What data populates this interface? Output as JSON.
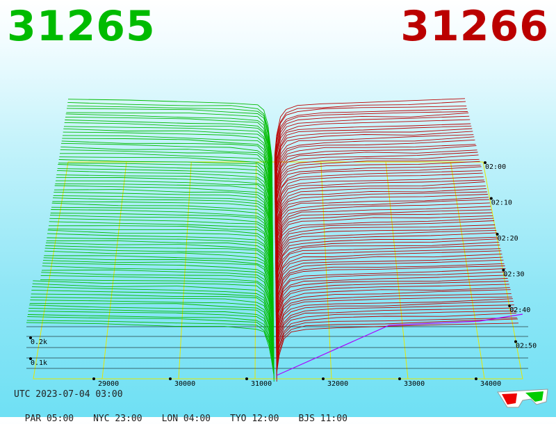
{
  "header": {
    "bid_price": "31265",
    "ask_price": "31266"
  },
  "colors": {
    "bid": "#00bb00",
    "ask": "#bb0000",
    "grid": "#e6e600",
    "edge": "#aa00ff",
    "base": "#000000"
  },
  "chart_data": {
    "type": "3d-depth",
    "price_axis": {
      "ticks": [
        "29000",
        "30000",
        "31000",
        "32000",
        "33000",
        "34000"
      ],
      "range": [
        28100,
        34500
      ]
    },
    "time_axis": {
      "ticks": [
        "02:00",
        "02:10",
        "02:20",
        "02:30",
        "02:40",
        "02:50"
      ]
    },
    "volume_axis": {
      "ticks": [
        "0.1k",
        "0.2k"
      ]
    },
    "bid_price": 31265,
    "ask_price": 31266
  },
  "footer": {
    "utc": "UTC 2023-07-04 03:00",
    "cities": [
      {
        "label": "PAR 05:00"
      },
      {
        "label": "NYC 23:00"
      },
      {
        "label": "LON 04:00"
      },
      {
        "label": "TYO 12:00"
      },
      {
        "label": "BJS 11:00"
      }
    ]
  },
  "icons": {
    "glasses": "3d-glasses-icon"
  }
}
